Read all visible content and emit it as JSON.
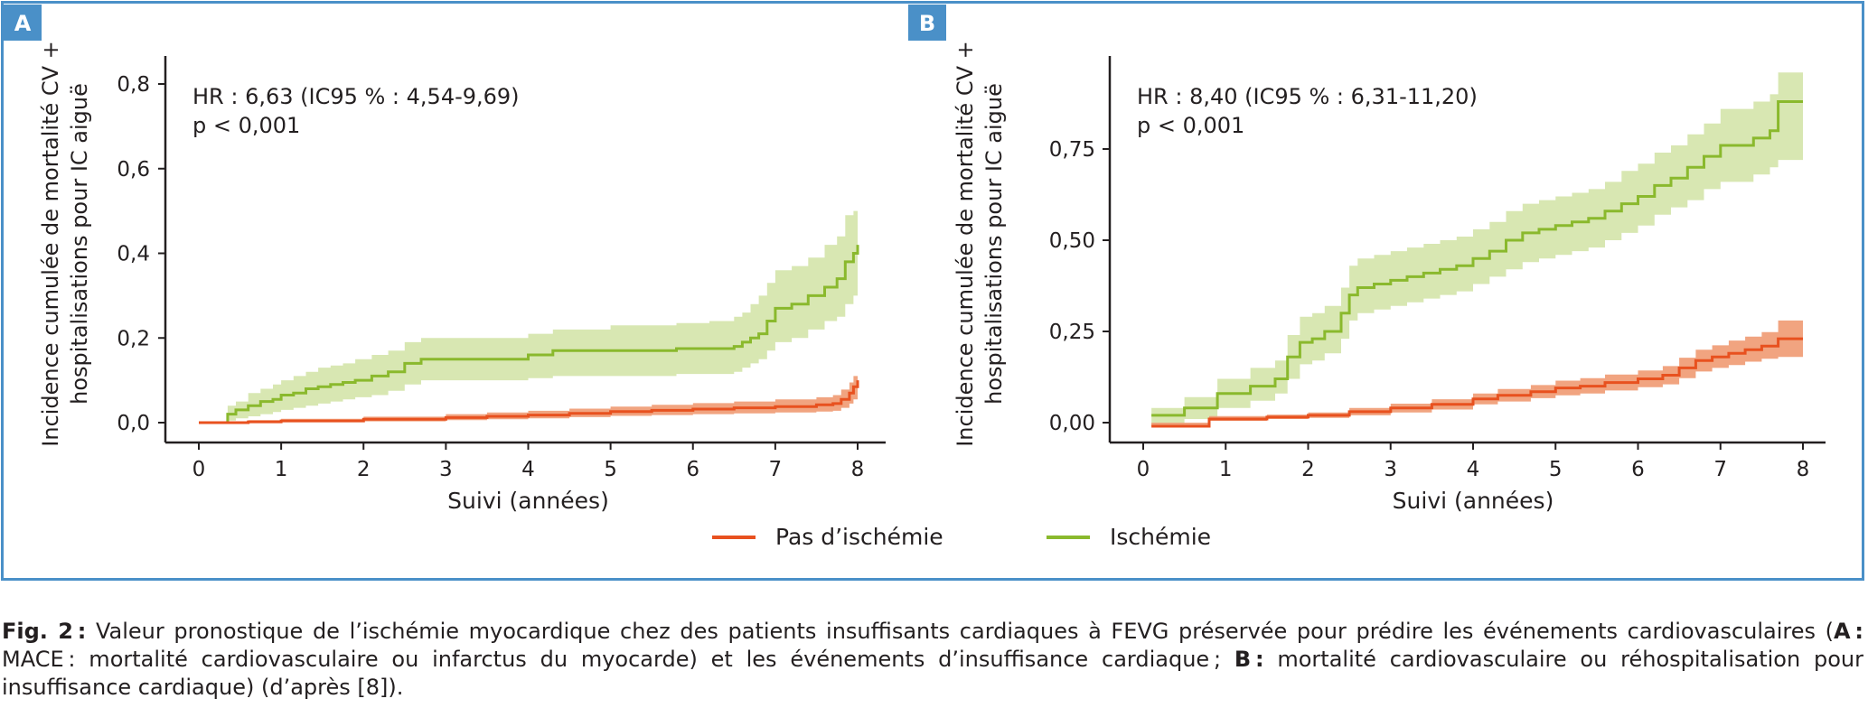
{
  "colors": {
    "frame": "#4a90c8",
    "no_ischemia": "#e8511f",
    "no_ischemia_ci": "#f09a72",
    "ischemia": "#8ab92d",
    "ischemia_ci": "#d6e6ae",
    "axis": "#231f20"
  },
  "legend": [
    {
      "label": "Pas d’ischémie",
      "color": "#e8511f"
    },
    {
      "label": "Ischémie",
      "color": "#8ab92d"
    }
  ],
  "caption": {
    "fig": "Fig. 2 :",
    "text1": " Valeur pronostique de l’ischémie myocardique chez des patients insuffisants cardiaques à FEVG préservée pour prédire les événements cardiovasculaires (",
    "label_a": "A :",
    "text2": " MACE : mortalité cardiovasculaire ou infarctus du myocarde) et les événements d’insuffisance cardiaque ; ",
    "label_b": "B :",
    "text3": " mortalité cardiovasculaire ou réhospitalisation pour insuffisance cardiaque) (d’après [8])."
  },
  "chart_data": [
    {
      "type": "line",
      "panel": "A",
      "annotation": [
        "HR : 6,63 (IC95 % : 4,54-9,69)",
        "p < 0,001"
      ],
      "xlabel": "Suivi (années)",
      "ylabel": [
        "Incidence cumulée de mortalité CV +",
        "hospitalisations pour IC aiguë"
      ],
      "xlim": [
        0,
        8
      ],
      "ylim": [
        0,
        0.85
      ],
      "xticks": [
        0,
        1,
        2,
        3,
        4,
        5,
        6,
        7,
        8
      ],
      "xtick_labels": [
        "0",
        "1",
        "2",
        "3",
        "4",
        "5",
        "6",
        "7",
        "8"
      ],
      "yticks": [
        0,
        0.2,
        0.4,
        0.6,
        0.8
      ],
      "ytick_labels": [
        "0,0",
        "0,2",
        "0,4",
        "0,6",
        "0,8"
      ],
      "series": [
        {
          "name": "Ischémie",
          "x": [
            0,
            0.3,
            0.35,
            0.45,
            0.6,
            0.75,
            0.9,
            1.0,
            1.15,
            1.3,
            1.45,
            1.6,
            1.75,
            1.9,
            2.1,
            2.3,
            2.5,
            2.7,
            3.0,
            3.5,
            4.0,
            4.3,
            5.0,
            5.5,
            5.8,
            6.2,
            6.5,
            6.6,
            6.7,
            6.8,
            6.9,
            7.0,
            7.2,
            7.4,
            7.6,
            7.75,
            7.85,
            7.95,
            8.0
          ],
          "y": [
            0,
            0,
            0.02,
            0.03,
            0.04,
            0.05,
            0.055,
            0.065,
            0.07,
            0.08,
            0.085,
            0.09,
            0.095,
            0.1,
            0.11,
            0.12,
            0.14,
            0.15,
            0.15,
            0.15,
            0.16,
            0.17,
            0.17,
            0.17,
            0.175,
            0.175,
            0.18,
            0.19,
            0.2,
            0.21,
            0.24,
            0.27,
            0.28,
            0.3,
            0.32,
            0.34,
            0.38,
            0.4,
            0.42
          ],
          "lower": [
            0,
            0,
            0.005,
            0.01,
            0.015,
            0.02,
            0.025,
            0.03,
            0.035,
            0.04,
            0.045,
            0.05,
            0.055,
            0.06,
            0.065,
            0.075,
            0.09,
            0.1,
            0.1,
            0.1,
            0.105,
            0.11,
            0.11,
            0.11,
            0.115,
            0.115,
            0.12,
            0.13,
            0.14,
            0.15,
            0.17,
            0.19,
            0.2,
            0.22,
            0.24,
            0.25,
            0.28,
            0.3,
            0.31
          ],
          "upper": [
            0,
            0,
            0.04,
            0.05,
            0.07,
            0.08,
            0.09,
            0.1,
            0.11,
            0.12,
            0.13,
            0.135,
            0.14,
            0.15,
            0.16,
            0.17,
            0.19,
            0.2,
            0.2,
            0.2,
            0.21,
            0.22,
            0.23,
            0.23,
            0.235,
            0.24,
            0.25,
            0.26,
            0.28,
            0.3,
            0.33,
            0.36,
            0.37,
            0.39,
            0.42,
            0.44,
            0.49,
            0.5,
            0.5
          ]
        },
        {
          "name": "Pas d’ischémie",
          "x": [
            0,
            0.3,
            0.6,
            1.0,
            2.0,
            3.0,
            3.5,
            4.0,
            4.5,
            5.0,
            5.5,
            6.0,
            6.5,
            7.0,
            7.5,
            7.7,
            7.8,
            7.9,
            7.95,
            8.0
          ],
          "y": [
            0,
            0,
            0.002,
            0.004,
            0.008,
            0.012,
            0.015,
            0.018,
            0.022,
            0.026,
            0.029,
            0.032,
            0.035,
            0.038,
            0.042,
            0.045,
            0.055,
            0.07,
            0.085,
            0.1
          ],
          "lower": [
            0,
            0,
            0,
            0.001,
            0.003,
            0.006,
            0.008,
            0.01,
            0.013,
            0.016,
            0.018,
            0.02,
            0.022,
            0.024,
            0.026,
            0.028,
            0.035,
            0.045,
            0.055,
            0.065
          ],
          "upper": [
            0,
            0,
            0.006,
            0.009,
            0.014,
            0.02,
            0.024,
            0.028,
            0.033,
            0.038,
            0.042,
            0.046,
            0.05,
            0.055,
            0.06,
            0.065,
            0.078,
            0.095,
            0.11,
            0.125
          ]
        }
      ]
    },
    {
      "type": "line",
      "panel": "B",
      "annotation": [
        "HR : 8,40 (IC95 % : 6,31-11,20)",
        "p < 0,001"
      ],
      "xlabel": "Suivi (années)",
      "ylabel": [
        "Incidence cumulée de mortalité CV +",
        "hospitalisations pour IC aiguë"
      ],
      "xlim": [
        0,
        8
      ],
      "ylim": [
        -0.05,
        1.0
      ],
      "xticks": [
        0,
        1,
        2,
        3,
        4,
        5,
        6,
        7,
        8
      ],
      "xtick_labels": [
        "0",
        "1",
        "2",
        "3",
        "4",
        "5",
        "6",
        "7",
        "8"
      ],
      "yticks": [
        0,
        0.25,
        0.5,
        0.75
      ],
      "ytick_labels": [
        "0,00",
        "0,25",
        "0,50",
        "0,75"
      ],
      "series": [
        {
          "name": "Ischémie",
          "x": [
            0.1,
            0.5,
            0.9,
            1.3,
            1.6,
            1.75,
            1.9,
            2.05,
            2.2,
            2.4,
            2.5,
            2.6,
            2.8,
            3.0,
            3.2,
            3.4,
            3.6,
            3.8,
            4.0,
            4.2,
            4.4,
            4.6,
            4.8,
            5.0,
            5.2,
            5.4,
            5.6,
            5.8,
            6.0,
            6.2,
            6.4,
            6.6,
            6.8,
            7.0,
            7.4,
            7.6,
            7.7,
            8.0
          ],
          "y": [
            0.02,
            0.04,
            0.08,
            0.1,
            0.12,
            0.18,
            0.22,
            0.23,
            0.25,
            0.3,
            0.35,
            0.37,
            0.38,
            0.39,
            0.4,
            0.41,
            0.42,
            0.43,
            0.45,
            0.47,
            0.5,
            0.52,
            0.53,
            0.54,
            0.55,
            0.56,
            0.58,
            0.6,
            0.62,
            0.65,
            0.67,
            0.7,
            0.73,
            0.76,
            0.78,
            0.8,
            0.88,
            0.88
          ],
          "lower": [
            -0.01,
            0.01,
            0.04,
            0.06,
            0.08,
            0.12,
            0.16,
            0.17,
            0.19,
            0.23,
            0.28,
            0.3,
            0.31,
            0.32,
            0.33,
            0.34,
            0.35,
            0.36,
            0.38,
            0.4,
            0.42,
            0.44,
            0.45,
            0.46,
            0.47,
            0.48,
            0.5,
            0.52,
            0.54,
            0.57,
            0.59,
            0.61,
            0.64,
            0.66,
            0.68,
            0.7,
            0.72,
            0.72
          ],
          "upper": [
            0.04,
            0.07,
            0.12,
            0.15,
            0.17,
            0.24,
            0.29,
            0.3,
            0.32,
            0.37,
            0.43,
            0.45,
            0.46,
            0.47,
            0.48,
            0.49,
            0.5,
            0.51,
            0.53,
            0.55,
            0.58,
            0.6,
            0.61,
            0.62,
            0.63,
            0.64,
            0.66,
            0.69,
            0.71,
            0.74,
            0.76,
            0.79,
            0.82,
            0.86,
            0.88,
            0.9,
            0.96,
            0.96
          ]
        },
        {
          "name": "Pas d’ischémie",
          "x": [
            0.1,
            0.8,
            1.5,
            2.0,
            2.5,
            3.0,
            3.5,
            4.0,
            4.3,
            4.7,
            5.0,
            5.3,
            5.6,
            6.0,
            6.3,
            6.5,
            6.7,
            6.9,
            7.1,
            7.3,
            7.5,
            7.7,
            8.0
          ],
          "y": [
            -0.01,
            0.01,
            0.015,
            0.02,
            0.03,
            0.04,
            0.05,
            0.065,
            0.075,
            0.085,
            0.095,
            0.1,
            0.11,
            0.12,
            0.13,
            0.15,
            0.17,
            0.18,
            0.19,
            0.2,
            0.21,
            0.23,
            0.23
          ],
          "lower": [
            -0.01,
            0.005,
            0.01,
            0.013,
            0.02,
            0.028,
            0.036,
            0.05,
            0.058,
            0.067,
            0.075,
            0.08,
            0.088,
            0.097,
            0.105,
            0.122,
            0.14,
            0.15,
            0.158,
            0.167,
            0.175,
            0.18,
            0.18
          ],
          "upper": [
            0.0,
            0.018,
            0.022,
            0.028,
            0.04,
            0.052,
            0.064,
            0.08,
            0.092,
            0.103,
            0.115,
            0.122,
            0.132,
            0.143,
            0.155,
            0.178,
            0.2,
            0.212,
            0.225,
            0.236,
            0.248,
            0.28,
            0.28
          ]
        }
      ]
    }
  ]
}
